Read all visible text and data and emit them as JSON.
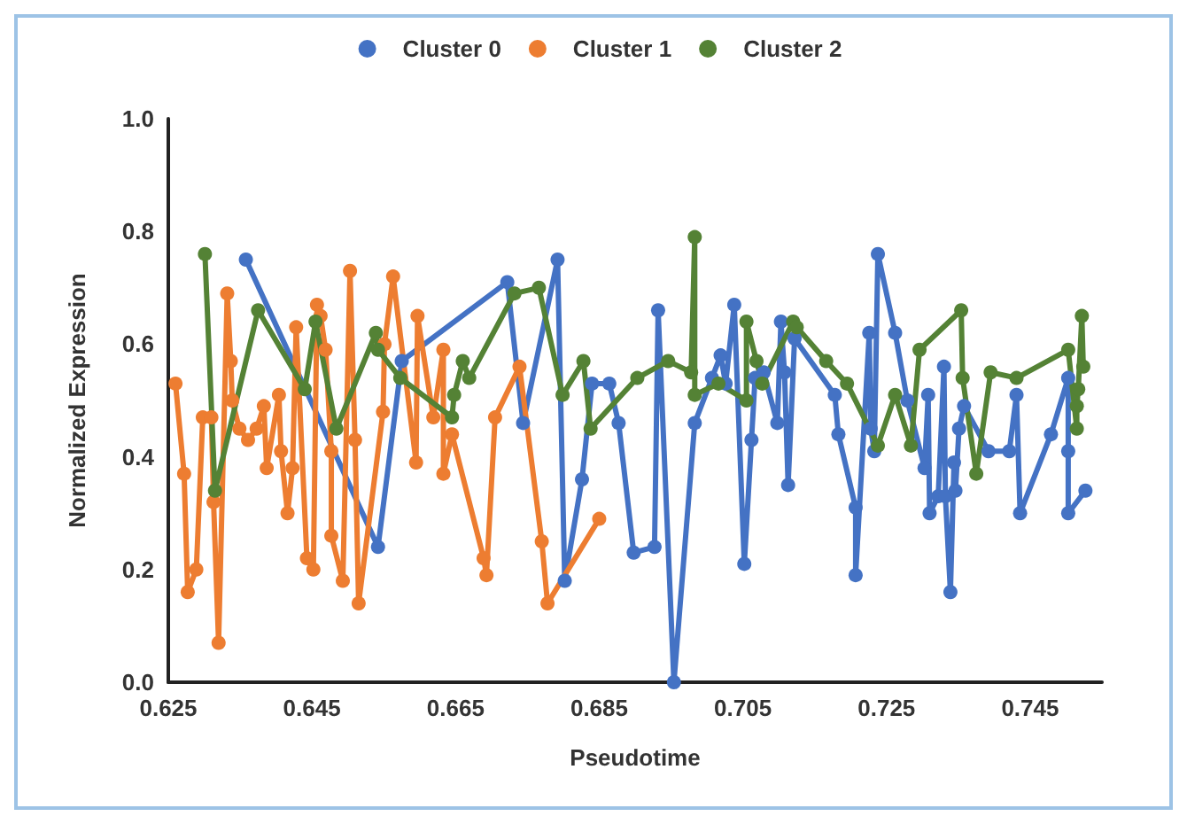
{
  "chart_data": {
    "type": "line",
    "xlabel": "Pseudotime",
    "ylabel": "Normalized Expression",
    "xlim": [
      0.625,
      0.755
    ],
    "xticks": [
      0.625,
      0.645,
      0.665,
      0.685,
      0.705,
      0.725,
      0.745
    ],
    "ylim": [
      0,
      1
    ],
    "yticks": [
      {
        "value": 0,
        "label": "0.0"
      },
      {
        "value": 0.2,
        "label": "0.2"
      },
      {
        "value": 0.4,
        "label": "0.4"
      },
      {
        "value": 0.6,
        "label": "0.6"
      },
      {
        "value": 0.8,
        "label": "0.8"
      },
      {
        "value": 1,
        "label": "1.0"
      }
    ],
    "grid": false,
    "legend": "top",
    "marker": "circle",
    "line_style": "solid",
    "series": [
      {
        "name": "Cluster 0",
        "color": "#4472c4",
        "x": [
          0.6358,
          0.6542,
          0.6575,
          0.6722,
          0.6744,
          0.6792,
          0.6802,
          0.6826,
          0.684,
          0.6864,
          0.6877,
          0.6898,
          0.6927,
          0.6932,
          0.6954,
          0.6983,
          0.7007,
          0.7019,
          0.7026,
          0.7038,
          0.7052,
          0.7062,
          0.7067,
          0.7079,
          0.7098,
          0.7103,
          0.7108,
          0.7113,
          0.7122,
          0.7178,
          0.7183,
          0.7207,
          0.7207,
          0.7226,
          0.7228,
          0.7233,
          0.7238,
          0.7262,
          0.7279,
          0.7303,
          0.7308,
          0.731,
          0.7322,
          0.733,
          0.7332,
          0.7339,
          0.7344,
          0.7346,
          0.7351,
          0.7358,
          0.7392,
          0.7421,
          0.7431,
          0.7436,
          0.7479,
          0.7503,
          0.7503,
          0.7503,
          0.7527
        ],
        "values": [
          0.75,
          0.24,
          0.57,
          0.71,
          0.46,
          0.75,
          0.18,
          0.36,
          0.53,
          0.53,
          0.46,
          0.23,
          0.24,
          0.66,
          0.0,
          0.46,
          0.54,
          0.58,
          0.53,
          0.67,
          0.21,
          0.43,
          0.54,
          0.55,
          0.46,
          0.64,
          0.55,
          0.35,
          0.61,
          0.51,
          0.44,
          0.31,
          0.19,
          0.62,
          0.45,
          0.41,
          0.76,
          0.62,
          0.5,
          0.38,
          0.51,
          0.3,
          0.33,
          0.56,
          0.33,
          0.16,
          0.39,
          0.34,
          0.45,
          0.49,
          0.41,
          0.41,
          0.51,
          0.3,
          0.44,
          0.54,
          0.41,
          0.3,
          0.34
        ]
      },
      {
        "name": "Cluster 1",
        "color": "#ed7d31",
        "x": [
          0.626,
          0.6272,
          0.6277,
          0.6289,
          0.6298,
          0.631,
          0.6313,
          0.632,
          0.6332,
          0.6337,
          0.6339,
          0.6349,
          0.6361,
          0.6373,
          0.6383,
          0.6387,
          0.6404,
          0.6407,
          0.6416,
          0.6423,
          0.6428,
          0.6443,
          0.6452,
          0.6457,
          0.6462,
          0.6469,
          0.6477,
          0.6477,
          0.6493,
          0.6503,
          0.651,
          0.6515,
          0.6549,
          0.6551,
          0.6563,
          0.6595,
          0.6597,
          0.6619,
          0.6633,
          0.6633,
          0.6645,
          0.6689,
          0.6693,
          0.6705,
          0.6739,
          0.677,
          0.6778,
          0.685
        ],
        "values": [
          0.53,
          0.37,
          0.16,
          0.2,
          0.47,
          0.47,
          0.32,
          0.07,
          0.69,
          0.57,
          0.5,
          0.45,
          0.43,
          0.45,
          0.49,
          0.38,
          0.51,
          0.41,
          0.3,
          0.38,
          0.63,
          0.22,
          0.2,
          0.67,
          0.65,
          0.59,
          0.41,
          0.26,
          0.18,
          0.73,
          0.43,
          0.14,
          0.48,
          0.6,
          0.72,
          0.39,
          0.65,
          0.47,
          0.59,
          0.37,
          0.44,
          0.22,
          0.19,
          0.47,
          0.56,
          0.25,
          0.14,
          0.29
        ]
      },
      {
        "name": "Cluster 2",
        "color": "#548235",
        "x": [
          0.6301,
          0.6315,
          0.6375,
          0.644,
          0.6455,
          0.6484,
          0.6539,
          0.6542,
          0.6573,
          0.6645,
          0.6648,
          0.666,
          0.6669,
          0.6732,
          0.6766,
          0.6799,
          0.6828,
          0.6838,
          0.6903,
          0.6946,
          0.6978,
          0.6983,
          0.6983,
          0.7016,
          0.7055,
          0.7055,
          0.7069,
          0.7077,
          0.712,
          0.7125,
          0.7166,
          0.7195,
          0.7238,
          0.7262,
          0.7284,
          0.7296,
          0.7354,
          0.7356,
          0.7375,
          0.7395,
          0.7431,
          0.7503,
          0.7515,
          0.7515,
          0.7517,
          0.7522,
          0.7524
        ],
        "values": [
          0.76,
          0.34,
          0.66,
          0.52,
          0.64,
          0.45,
          0.62,
          0.59,
          0.54,
          0.47,
          0.51,
          0.57,
          0.54,
          0.69,
          0.7,
          0.51,
          0.57,
          0.45,
          0.54,
          0.57,
          0.55,
          0.79,
          0.51,
          0.53,
          0.5,
          0.64,
          0.57,
          0.53,
          0.64,
          0.63,
          0.57,
          0.53,
          0.42,
          0.51,
          0.42,
          0.59,
          0.66,
          0.54,
          0.37,
          0.55,
          0.54,
          0.59,
          0.45,
          0.49,
          0.52,
          0.65,
          0.56
        ]
      }
    ]
  }
}
